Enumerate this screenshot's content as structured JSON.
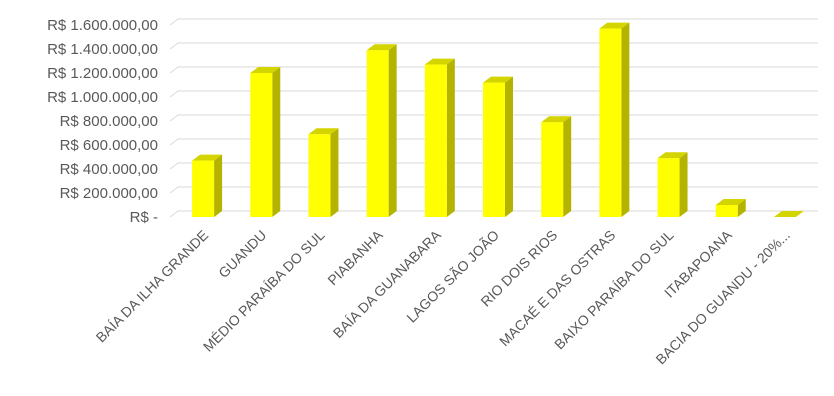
{
  "chart_data": {
    "type": "bar",
    "style": "3d-column",
    "categories": [
      "BAÍA DA ILHA GRANDE",
      "GUANDU",
      "MÉDIO PARAÍBA DO SUL",
      "PIABANHA",
      "BAÍA DA GUANABARA",
      "LAGOS SÃO JOÃO",
      "RIO DOIS RIOS",
      "MACAÉ E DAS OSTRAS",
      "BAIXO PARAÍBA DO SUL",
      "ITABAPOANA",
      "BACIA DO GUANDU - 20%..."
    ],
    "values": [
      470000,
      1200000,
      690000,
      1390000,
      1270000,
      1120000,
      790000,
      1570000,
      490000,
      100000,
      0
    ],
    "ylim": [
      0,
      1600000
    ],
    "yticks": [
      0,
      200000,
      400000,
      600000,
      800000,
      1000000,
      1200000,
      1400000,
      1600000
    ],
    "ytick_labels": [
      "R$ -",
      "R$ 200.000,00",
      "R$ 400.000,00",
      "R$ 600.000,00",
      "R$ 800.000,00",
      "R$ 1.000.000,00",
      "R$ 1.200.000,00",
      "R$ 1.400.000,00",
      "R$ 1.600.000,00"
    ],
    "grid": true,
    "legend": "none",
    "colors": {
      "front": "#ffff00",
      "side": "#b3b300",
      "top": "#d4d400",
      "grid": "#d9d9d9",
      "text": "#595959"
    }
  }
}
